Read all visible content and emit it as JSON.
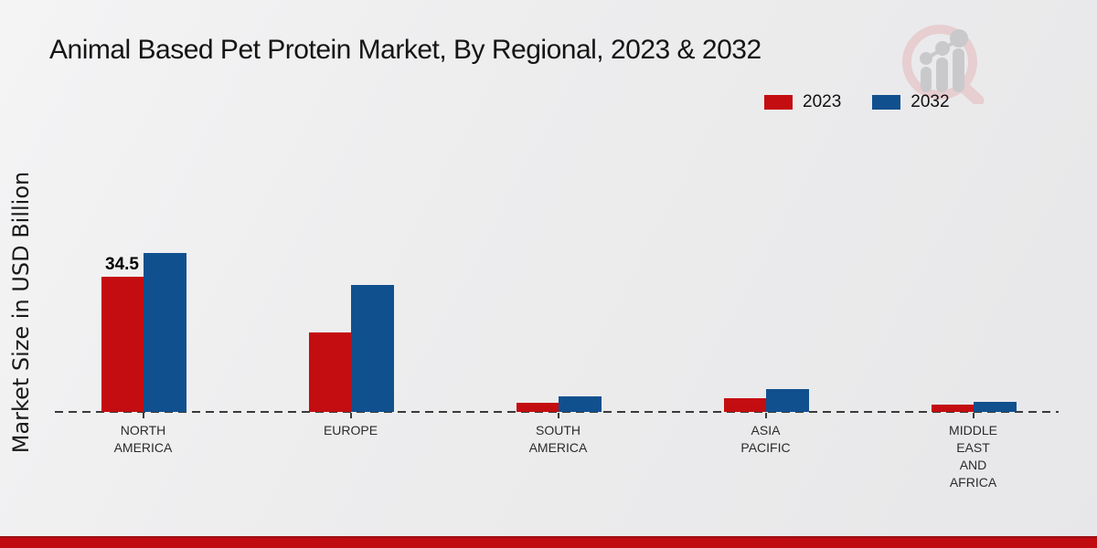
{
  "title": "Animal Based Pet Protein Market, By Regional, 2023 & 2032",
  "accent_bar_color": "#c00b10",
  "accent_bar_edge_color": "#9d1014",
  "branding": {
    "watermark_icon": "magnifier-bar-chart-icon"
  },
  "chart_data": {
    "type": "bar",
    "title": "Animal Based Pet Protein Market, By Regional, 2023 & 2032",
    "xlabel": "",
    "ylabel": "Market Size in USD Billion",
    "categories": [
      "NORTH AMERICA",
      "EUROPE",
      "SOUTH AMERICA",
      "ASIA PACIFIC",
      "MIDDLE EAST AND AFRICA"
    ],
    "category_label_lines": [
      [
        "NORTH",
        "AMERICA"
      ],
      [
        "EUROPE"
      ],
      [
        "SOUTH",
        "AMERICA"
      ],
      [
        "ASIA",
        "PACIFIC"
      ],
      [
        "MIDDLE",
        "EAST",
        "AND",
        "AFRICA"
      ]
    ],
    "series": [
      {
        "name": "2023",
        "color": "#c40d11",
        "values": [
          34.5,
          20.2,
          2.3,
          3.5,
          1.8
        ]
      },
      {
        "name": "2032",
        "color": "#11508e",
        "values": [
          40.5,
          32.3,
          3.9,
          5.7,
          2.6
        ]
      }
    ],
    "data_labels": [
      {
        "series": "2023",
        "category": "NORTH AMERICA",
        "text": "34.5"
      }
    ],
    "legend_position": "top-right",
    "grid": false,
    "baseline_style": "dashed",
    "baseline_color": "#3a3a3a"
  }
}
